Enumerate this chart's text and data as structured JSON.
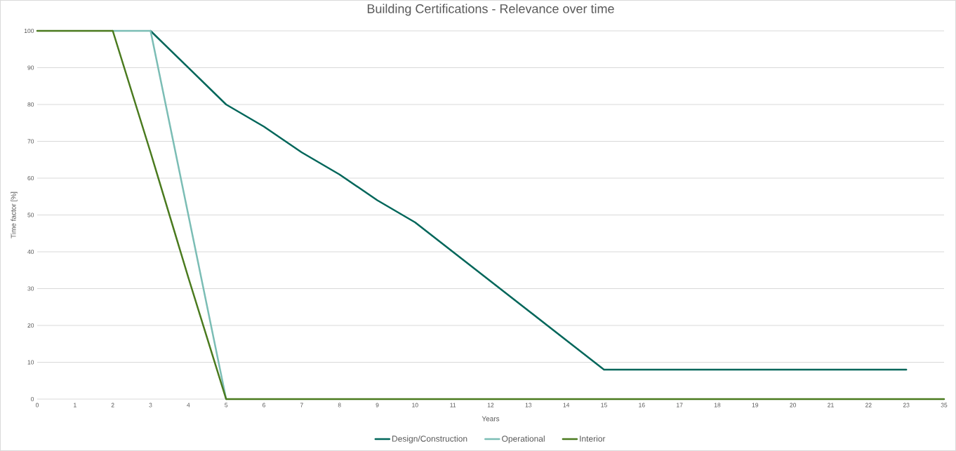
{
  "chart_data": {
    "type": "line",
    "title": "Building Certifications - Relevance over time",
    "xlabel": "Years",
    "ylabel": "Time factor [%]",
    "categories": [
      "0",
      "1",
      "2",
      "3",
      "4",
      "5",
      "6",
      "7",
      "8",
      "9",
      "10",
      "11",
      "12",
      "13",
      "14",
      "15",
      "16",
      "17",
      "18",
      "19",
      "20",
      "21",
      "22",
      "23",
      "35"
    ],
    "series": [
      {
        "name": "Design/Construction",
        "color": "#00665a",
        "values": [
          null,
          null,
          null,
          100,
          90,
          80,
          74,
          67,
          61,
          54,
          48,
          40,
          32,
          24,
          16,
          8,
          8,
          8,
          8,
          8,
          8,
          8,
          8,
          8,
          null
        ]
      },
      {
        "name": "Operational",
        "color": "#7bbdb5",
        "values": [
          null,
          null,
          100,
          100,
          50,
          0,
          null,
          null,
          null,
          null,
          null,
          null,
          null,
          null,
          null,
          null,
          null,
          null,
          null,
          null,
          null,
          null,
          null,
          null,
          null
        ]
      },
      {
        "name": "Interior",
        "color": "#4a7a1e",
        "values": [
          100,
          100,
          100,
          67,
          33,
          0,
          0,
          0,
          0,
          0,
          0,
          0,
          0,
          0,
          0,
          0,
          0,
          0,
          0,
          0,
          0,
          0,
          0,
          0,
          0
        ]
      }
    ],
    "ylim": [
      0,
      100
    ],
    "yticks": [
      0,
      10,
      20,
      30,
      40,
      50,
      60,
      70,
      80,
      90,
      100
    ],
    "grid": "y",
    "legend": "bottom"
  }
}
